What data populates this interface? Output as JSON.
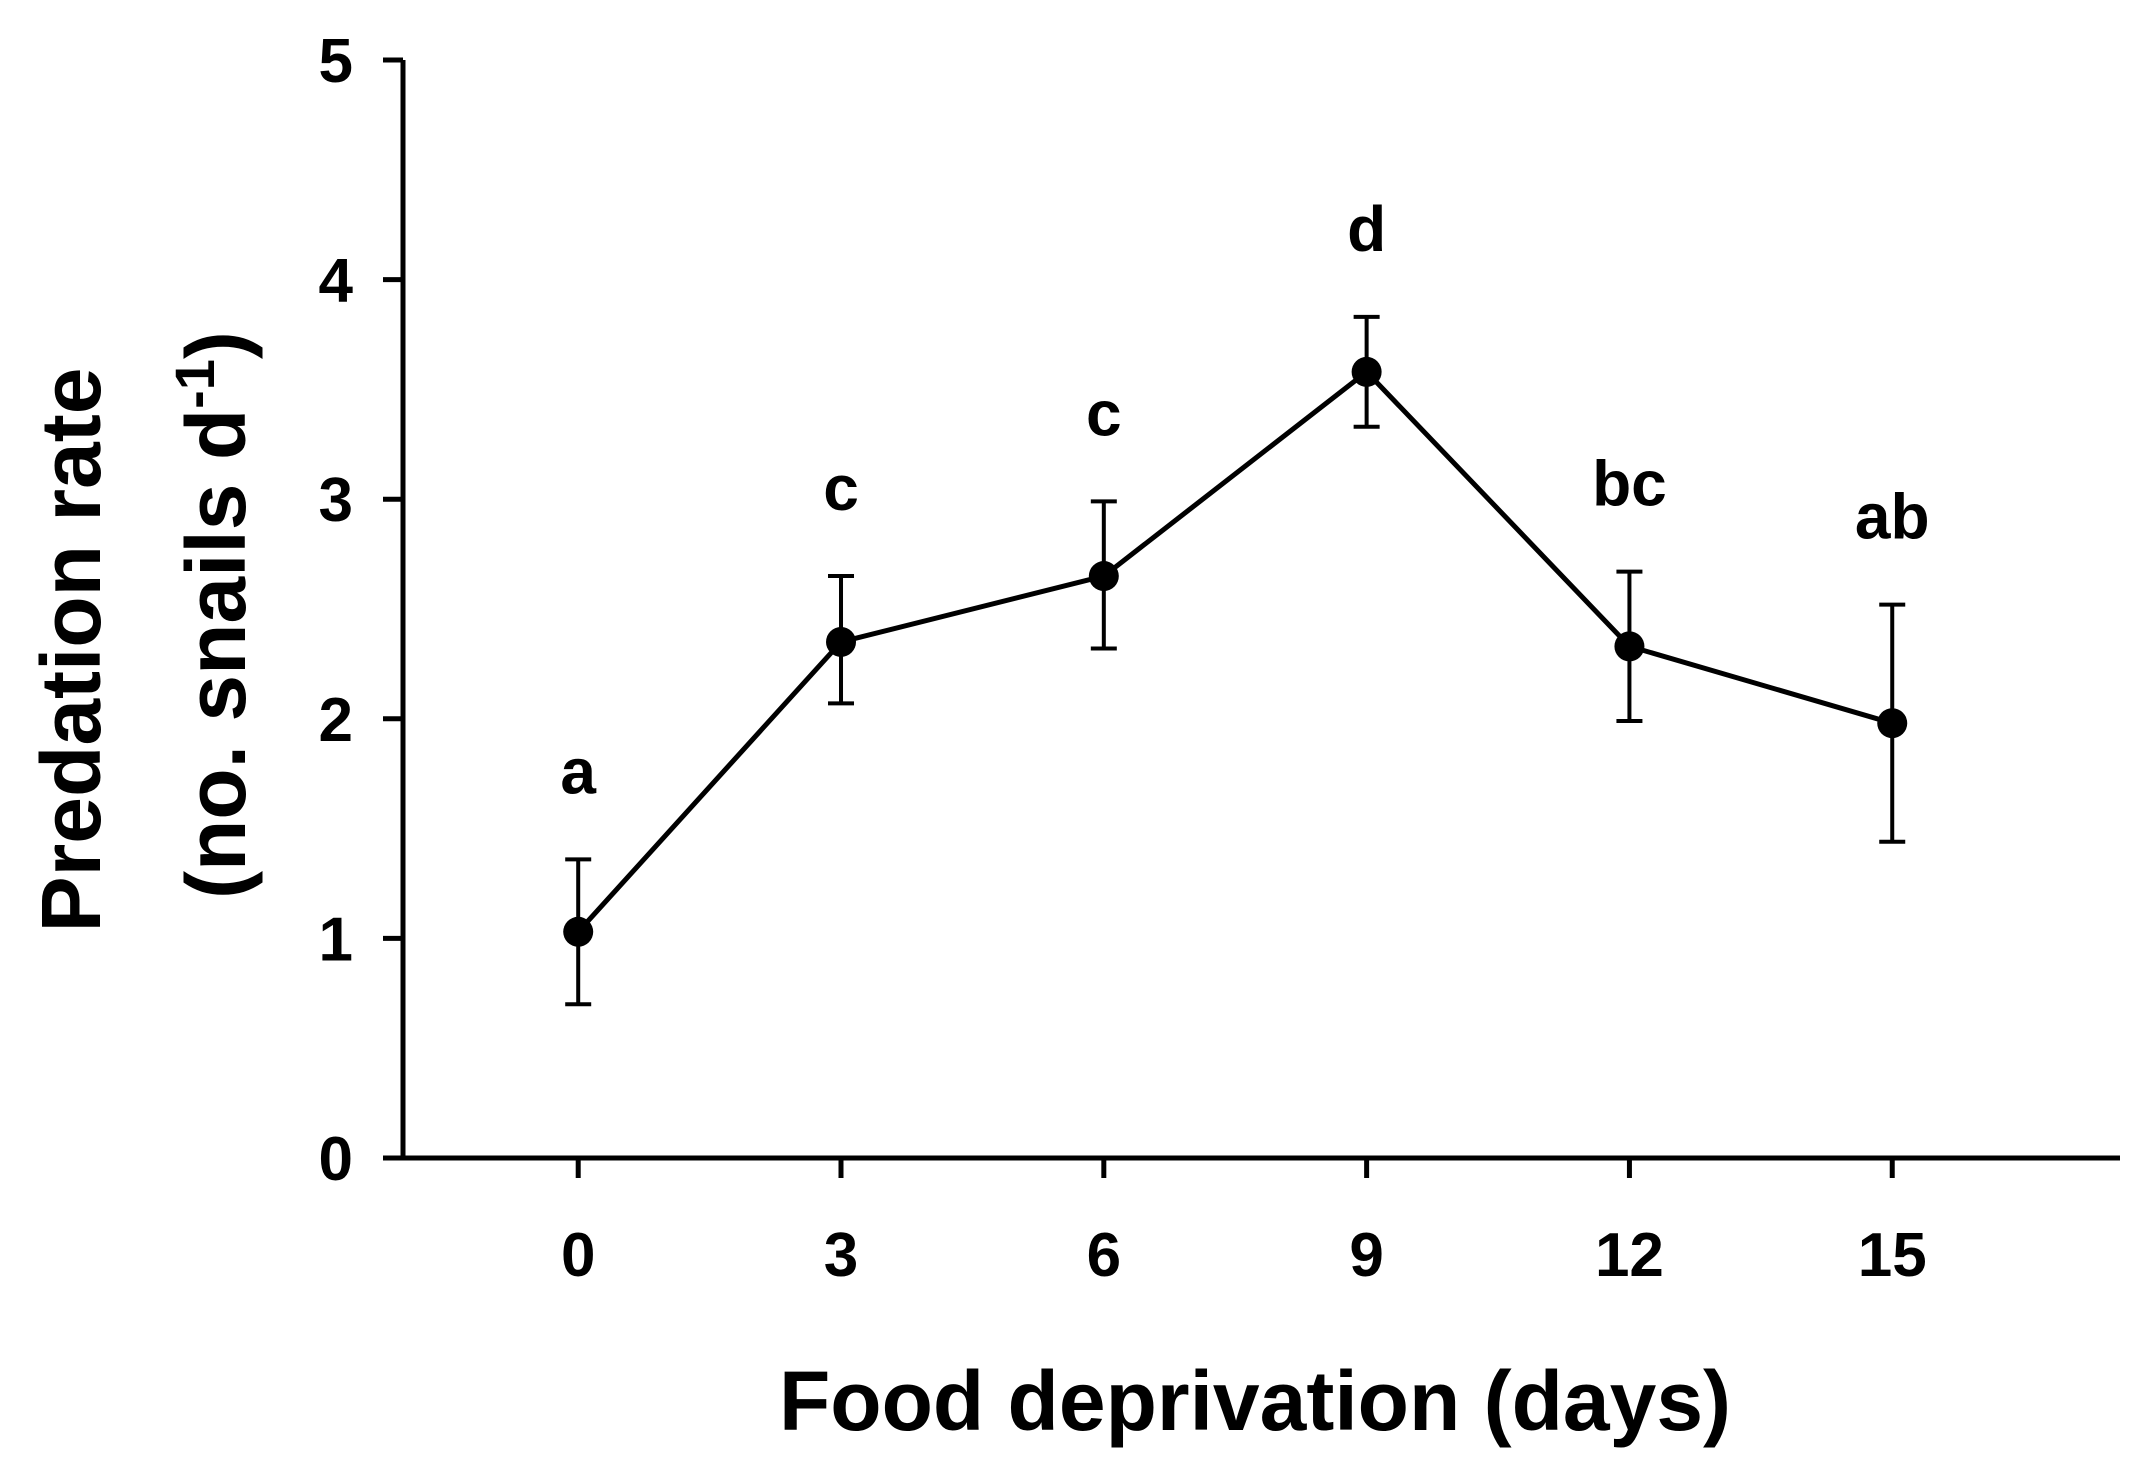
{
  "chart_data": {
    "type": "line",
    "title": "",
    "xlabel": "Food deprivation (days)",
    "ylabel_line1": "Predation rate",
    "ylabel_line2_prefix": "(no. snails d",
    "ylabel_line2_superscript": "-1",
    "ylabel_line2_suffix": ")",
    "x": [
      0,
      3,
      6,
      9,
      12,
      15
    ],
    "x_tick_labels": [
      "0",
      "3",
      "6",
      "9",
      "12",
      "15"
    ],
    "xlim": [
      -2,
      17.6
    ],
    "ylim": [
      0,
      5
    ],
    "y_ticks": [
      0,
      1,
      2,
      3,
      4,
      5
    ],
    "y_tick_labels": [
      "0",
      "1",
      "2",
      "3",
      "4",
      "5"
    ],
    "grid": false,
    "series": [
      {
        "name": "Predation rate",
        "values": [
          1.03,
          2.35,
          2.65,
          3.58,
          2.33,
          1.98
        ],
        "error_upper": [
          1.36,
          2.65,
          2.99,
          3.83,
          2.67,
          2.52
        ],
        "error_lower": [
          0.7,
          2.07,
          2.32,
          3.33,
          1.99,
          1.44
        ],
        "significance_letters": [
          "a",
          "c",
          "c",
          "d",
          "bc",
          "ab"
        ]
      }
    ],
    "colors": {
      "line": "#000000",
      "marker": "#000000",
      "background": "#ffffff"
    }
  }
}
